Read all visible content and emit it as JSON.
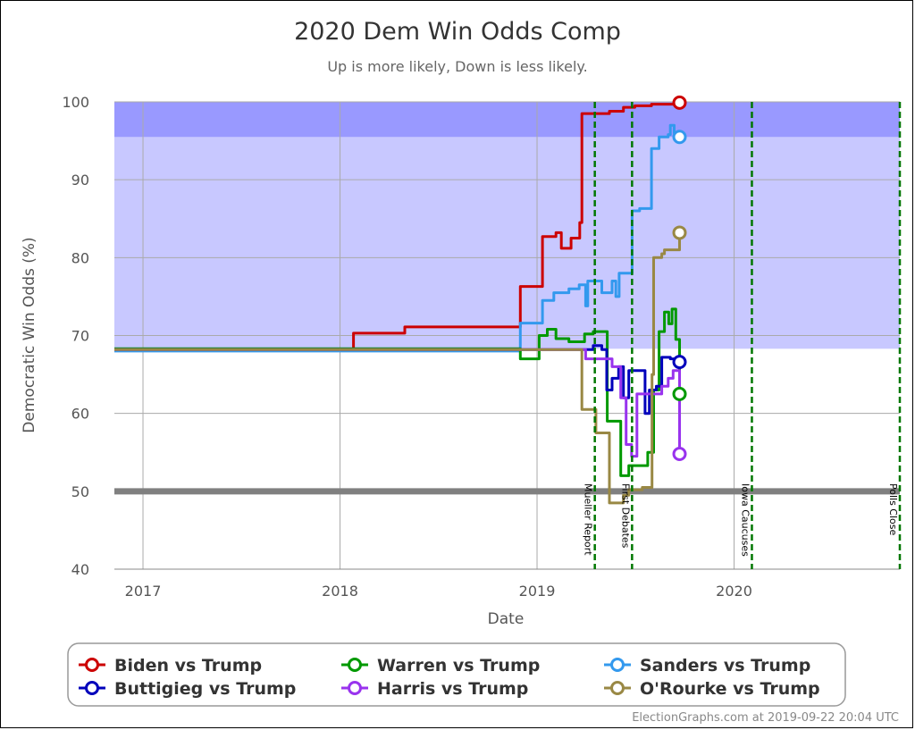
{
  "chart_data": {
    "type": "line",
    "title": "2020 Dem Win Odds Comp",
    "subtitle": "Up is more likely, Down is less likely.",
    "xlabel": "Date",
    "ylabel": "Democratic Win Odds (%)",
    "x_ticks": [
      "2017",
      "2018",
      "2019",
      "2020"
    ],
    "y_ticks": [
      40,
      50,
      60,
      70,
      80,
      90,
      100
    ],
    "ylim": [
      40,
      100
    ],
    "xlim": [
      "2016-11-09",
      "2020-11-03"
    ],
    "grid": true,
    "bands": [
      {
        "from": 68.3,
        "to": 100,
        "color": "#c8c8ff"
      },
      {
        "from": 95.5,
        "to": 100,
        "color": "#9999ff"
      }
    ],
    "reference_line": {
      "y": 50,
      "color": "#808080"
    },
    "events": [
      {
        "date": "2019-04-18",
        "label": "Mueller Report"
      },
      {
        "date": "2019-06-26",
        "label": "First Debates"
      },
      {
        "date": "2020-02-03",
        "label": "Iowa Caucuses"
      },
      {
        "date": "2020-11-03",
        "label": "Polls Close"
      }
    ],
    "legend_position": "bottom",
    "series": [
      {
        "name": "Biden vs Trump",
        "color": "#cc0000",
        "points": [
          [
            "2016-11-09",
            68.2
          ],
          [
            "2018-01-25",
            68.2
          ],
          [
            "2018-01-26",
            70.3
          ],
          [
            "2018-04-30",
            70.3
          ],
          [
            "2018-05-01",
            71.1
          ],
          [
            "2018-11-30",
            71.1
          ],
          [
            "2018-12-01",
            76.3
          ],
          [
            "2019-01-10",
            76.3
          ],
          [
            "2019-01-11",
            82.7
          ],
          [
            "2019-02-05",
            83.2
          ],
          [
            "2019-02-15",
            81.2
          ],
          [
            "2019-03-01",
            81.2
          ],
          [
            "2019-03-05",
            82.5
          ],
          [
            "2019-03-20",
            82.5
          ],
          [
            "2019-03-21",
            84.5
          ],
          [
            "2019-03-25",
            98.5
          ],
          [
            "2019-05-15",
            98.8
          ],
          [
            "2019-06-01",
            98.8
          ],
          [
            "2019-06-10",
            99.3
          ],
          [
            "2019-07-01",
            99.5
          ],
          [
            "2019-08-01",
            99.7
          ],
          [
            "2019-09-22",
            99.9
          ]
        ]
      },
      {
        "name": "Sanders vs Trump",
        "color": "#3399ee",
        "points": [
          [
            "2016-11-09",
            68.0
          ],
          [
            "2018-11-30",
            68.0
          ],
          [
            "2018-12-01",
            71.6
          ],
          [
            "2019-01-10",
            71.6
          ],
          [
            "2019-01-11",
            74.5
          ],
          [
            "2019-02-01",
            75.5
          ],
          [
            "2019-03-01",
            76.0
          ],
          [
            "2019-03-20",
            76.5
          ],
          [
            "2019-04-01",
            73.8
          ],
          [
            "2019-04-05",
            77.0
          ],
          [
            "2019-05-01",
            75.5
          ],
          [
            "2019-05-20",
            77.0
          ],
          [
            "2019-05-27",
            75.0
          ],
          [
            "2019-06-02",
            78.0
          ],
          [
            "2019-06-25",
            78.0
          ],
          [
            "2019-06-26",
            86.0
          ],
          [
            "2019-07-10",
            86.3
          ],
          [
            "2019-07-20",
            86.3
          ],
          [
            "2019-08-01",
            94.0
          ],
          [
            "2019-08-15",
            95.5
          ],
          [
            "2019-09-01",
            95.8
          ],
          [
            "2019-09-05",
            97.0
          ],
          [
            "2019-09-12",
            96.0
          ],
          [
            "2019-09-22",
            95.5
          ]
        ]
      },
      {
        "name": "Warren vs Trump",
        "color": "#009900",
        "points": [
          [
            "2016-11-09",
            68.3
          ],
          [
            "2018-11-30",
            68.3
          ],
          [
            "2018-12-01",
            67.0
          ],
          [
            "2019-01-01",
            67.0
          ],
          [
            "2019-01-05",
            70.0
          ],
          [
            "2019-01-20",
            70.8
          ],
          [
            "2019-02-05",
            69.6
          ],
          [
            "2019-03-01",
            69.2
          ],
          [
            "2019-03-30",
            70.2
          ],
          [
            "2019-04-15",
            70.5
          ],
          [
            "2019-05-10",
            70.5
          ],
          [
            "2019-05-11",
            59.0
          ],
          [
            "2019-05-30",
            59.0
          ],
          [
            "2019-06-05",
            52.0
          ],
          [
            "2019-06-20",
            53.3
          ],
          [
            "2019-07-15",
            53.3
          ],
          [
            "2019-07-25",
            55.0
          ],
          [
            "2019-08-05",
            63.0
          ],
          [
            "2019-08-15",
            70.5
          ],
          [
            "2019-08-25",
            73.0
          ],
          [
            "2019-09-02",
            71.5
          ],
          [
            "2019-09-08",
            73.4
          ],
          [
            "2019-09-15",
            69.5
          ],
          [
            "2019-09-22",
            62.5
          ]
        ]
      },
      {
        "name": "Buttigieg vs Trump",
        "color": "#0000bb",
        "points": [
          [
            "2016-11-09",
            68.2
          ],
          [
            "2019-03-01",
            68.2
          ],
          [
            "2019-03-15",
            68.2
          ],
          [
            "2019-04-15",
            68.7
          ],
          [
            "2019-05-01",
            68.2
          ],
          [
            "2019-05-10",
            63.0
          ],
          [
            "2019-05-20",
            64.5
          ],
          [
            "2019-06-01",
            66.0
          ],
          [
            "2019-06-10",
            62.0
          ],
          [
            "2019-06-20",
            65.5
          ],
          [
            "2019-07-15",
            65.5
          ],
          [
            "2019-07-20",
            60.0
          ],
          [
            "2019-07-28",
            63.0
          ],
          [
            "2019-08-10",
            63.5
          ],
          [
            "2019-08-20",
            67.2
          ],
          [
            "2019-09-05",
            67.0
          ],
          [
            "2019-09-22",
            66.6
          ]
        ]
      },
      {
        "name": "Harris vs Trump",
        "color": "#9933ee",
        "points": [
          [
            "2016-11-09",
            68.2
          ],
          [
            "2019-03-20",
            68.2
          ],
          [
            "2019-04-01",
            67.0
          ],
          [
            "2019-05-01",
            67.0
          ],
          [
            "2019-05-20",
            66.0
          ],
          [
            "2019-06-05",
            62.0
          ],
          [
            "2019-06-15",
            56.0
          ],
          [
            "2019-06-25",
            54.5
          ],
          [
            "2019-07-05",
            62.5
          ],
          [
            "2019-08-01",
            62.5
          ],
          [
            "2019-08-20",
            63.5
          ],
          [
            "2019-09-01",
            64.5
          ],
          [
            "2019-09-10",
            65.5
          ],
          [
            "2019-09-22",
            54.8
          ]
        ]
      },
      {
        "name": "O'Rourke vs Trump",
        "color": "#998844",
        "points": [
          [
            "2016-11-09",
            68.2
          ],
          [
            "2019-03-15",
            68.2
          ],
          [
            "2019-03-25",
            60.5
          ],
          [
            "2019-04-20",
            57.5
          ],
          [
            "2019-05-10",
            57.5
          ],
          [
            "2019-05-15",
            48.5
          ],
          [
            "2019-06-10",
            49.5
          ],
          [
            "2019-06-20",
            50.2
          ],
          [
            "2019-07-15",
            50.5
          ],
          [
            "2019-08-01",
            50.5
          ],
          [
            "2019-08-02",
            65.0
          ],
          [
            "2019-08-05",
            80.0
          ],
          [
            "2019-08-20",
            80.5
          ],
          [
            "2019-08-25",
            81.0
          ],
          [
            "2019-09-10",
            81.0
          ],
          [
            "2019-09-22",
            83.2
          ]
        ]
      }
    ]
  },
  "credit": "ElectionGraphs.com at 2019-09-22 20:04 UTC"
}
